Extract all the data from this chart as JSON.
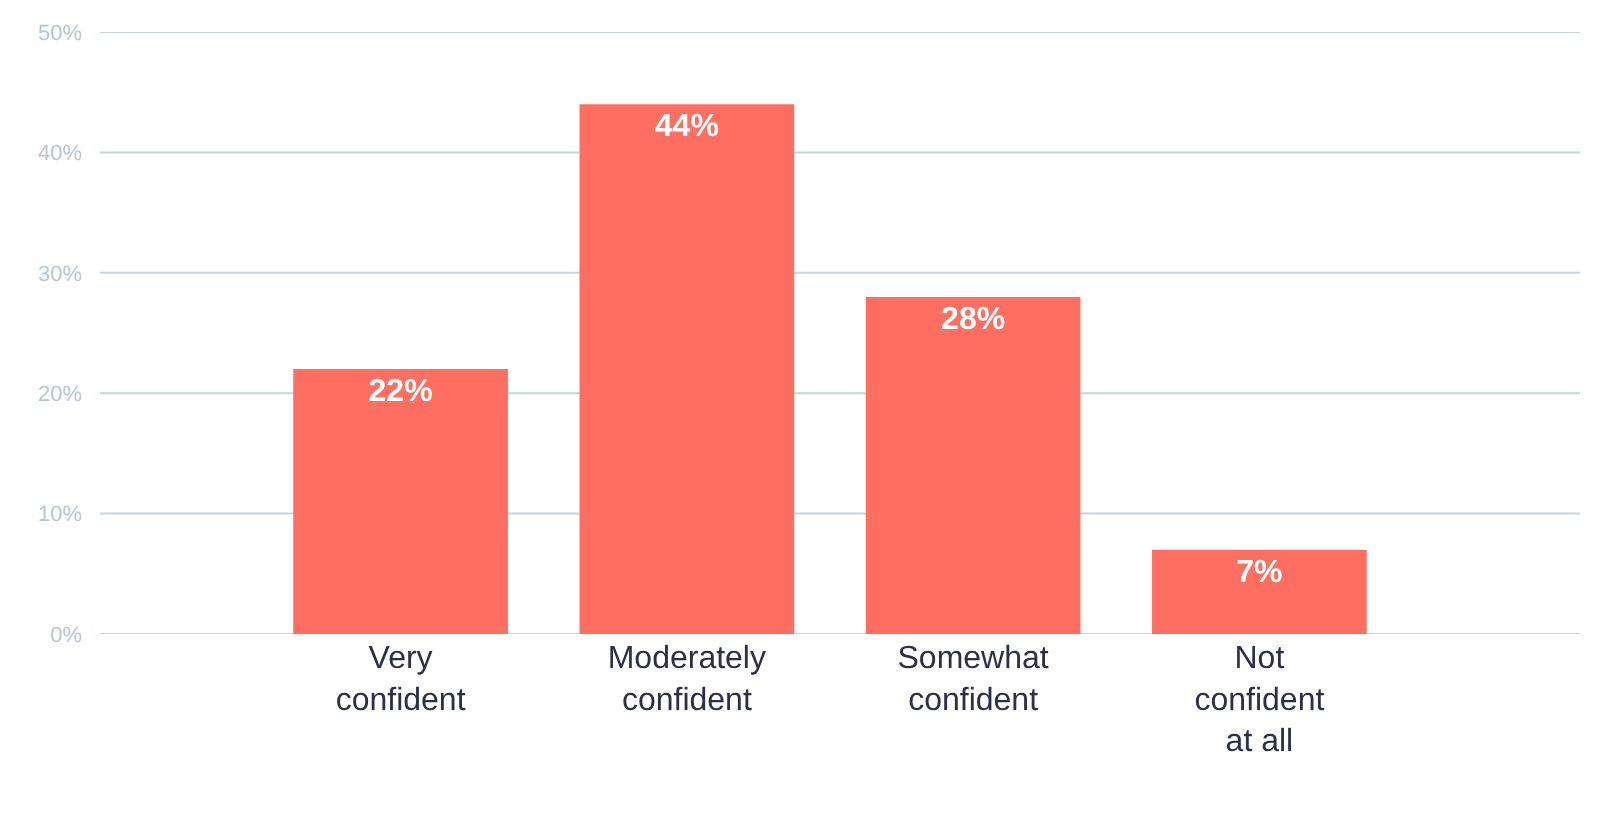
{
  "chart_data": {
    "type": "bar",
    "categories": [
      "Very confident",
      "Moderately confident",
      "Somewhat confident",
      "Not confident at all"
    ],
    "values": [
      22,
      44,
      28,
      7
    ],
    "value_labels": [
      "22%",
      "44%",
      "28%",
      "7%"
    ],
    "color": "#ff6f61",
    "ylim": [
      0,
      50
    ],
    "yticks": [
      {
        "value": 0,
        "label": "0%"
      },
      {
        "value": 10,
        "label": "10%"
      },
      {
        "value": 20,
        "label": "20%"
      },
      {
        "value": 30,
        "label": "30%"
      },
      {
        "value": 40,
        "label": "40%"
      },
      {
        "value": 50,
        "label": "50%"
      }
    ],
    "grid": "y"
  }
}
